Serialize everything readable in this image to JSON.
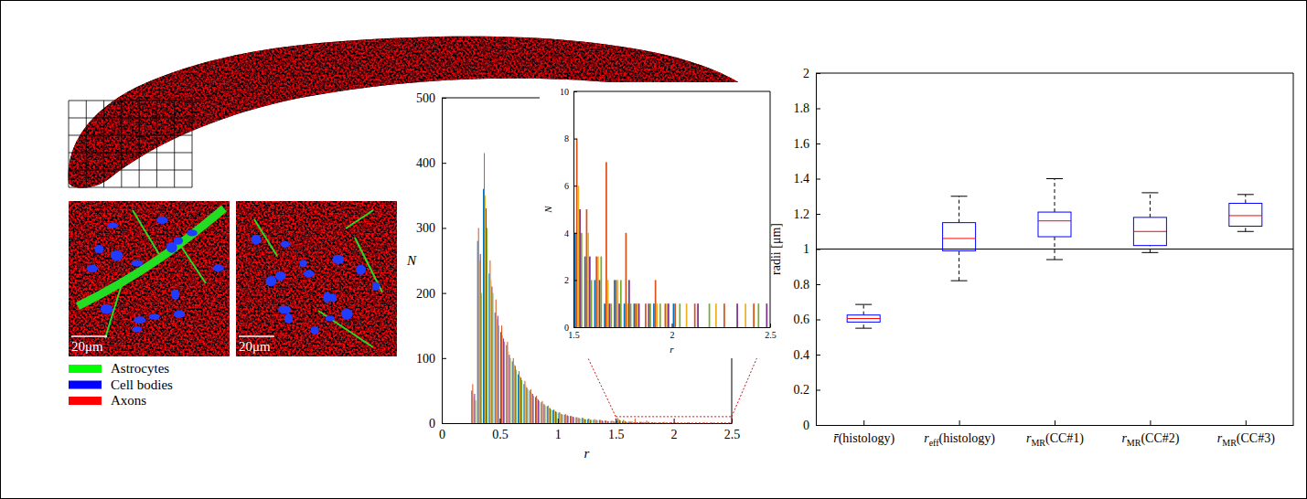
{
  "micrographs": {
    "scale_bars": [
      "20μm",
      "20μm"
    ],
    "legend": [
      {
        "name": "Astrocytes",
        "color": "#00ff00"
      },
      {
        "name": "Cell bodies",
        "color": "#0000ff"
      },
      {
        "name": "Axons",
        "color": "#ff0000"
      }
    ]
  },
  "chart_data": [
    {
      "type": "histogram",
      "xlabel": "r",
      "ylabel": "N",
      "bins": [
        0.25,
        0.3,
        0.35,
        0.4,
        0.45,
        0.5,
        0.55,
        0.6,
        0.65,
        0.7,
        0.75,
        0.8,
        0.85,
        0.9,
        0.95,
        1,
        1.05,
        1.1,
        1.15,
        1.2,
        1.25,
        1.3,
        1.35,
        1.4,
        1.45,
        1.5,
        1.55,
        1.6,
        1.65,
        1.7,
        1.75,
        1.8,
        1.85,
        1.9,
        1.95,
        2,
        2.05,
        2.1,
        2.15,
        2.2,
        2.25,
        2.3,
        2.35,
        2.4,
        2.45,
        2.5
      ],
      "series": [
        {
          "color": "#0072bd",
          "values": [
            50,
            280,
            360,
            230,
            170,
            140,
            120,
            95,
            75,
            60,
            50,
            40,
            32,
            26,
            20,
            16,
            13,
            11,
            9,
            8,
            6,
            5,
            5,
            4,
            3,
            4,
            3,
            2,
            1,
            2,
            1,
            1,
            0,
            1,
            0,
            1,
            0,
            0,
            0,
            0,
            0,
            0,
            0,
            0,
            0
          ]
        },
        {
          "color": "#d95319",
          "values": [
            60,
            300,
            415,
            250,
            190,
            150,
            125,
            100,
            80,
            65,
            52,
            42,
            34,
            27,
            21,
            17,
            14,
            11,
            9,
            8,
            7,
            6,
            5,
            4,
            4,
            8,
            5,
            3,
            7,
            2,
            4,
            1,
            1,
            2,
            1,
            1,
            0,
            1,
            0,
            0,
            1,
            0,
            0,
            1,
            0
          ]
        },
        {
          "color": "#edb120",
          "values": [
            40,
            250,
            350,
            220,
            160,
            135,
            110,
            90,
            72,
            58,
            46,
            38,
            30,
            24,
            19,
            15,
            12,
            10,
            8,
            7,
            6,
            5,
            4,
            3,
            3,
            6,
            4,
            3,
            2,
            2,
            1,
            1,
            0,
            1,
            1,
            0,
            1,
            0,
            0,
            1,
            0,
            0,
            1,
            0,
            0
          ]
        },
        {
          "color": "#7e2f8e",
          "values": [
            45,
            260,
            330,
            210,
            165,
            130,
            105,
            88,
            70,
            55,
            45,
            36,
            29,
            23,
            18,
            14,
            12,
            10,
            8,
            6,
            5,
            5,
            4,
            3,
            3,
            5,
            3,
            2,
            1,
            1,
            2,
            1,
            1,
            0,
            1,
            0,
            0,
            1,
            0,
            0,
            0,
            1,
            0,
            0,
            1
          ]
        },
        {
          "color": "#77ac30",
          "values": [
            35,
            200,
            300,
            200,
            150,
            125,
            100,
            82,
            66,
            52,
            42,
            34,
            27,
            21,
            17,
            13,
            11,
            9,
            7,
            6,
            5,
            4,
            3,
            3,
            2,
            4,
            2,
            3,
            1,
            2,
            1,
            0,
            1,
            1,
            0,
            1,
            0,
            0,
            1,
            0,
            0,
            0,
            0,
            1,
            0
          ]
        }
      ],
      "xlim": [
        0,
        2.5
      ],
      "ylim": [
        0,
        500
      ],
      "xticks": [
        0,
        0.5,
        1,
        1.5,
        2,
        2.5
      ],
      "yticks": [
        0,
        100,
        200,
        300,
        400,
        500
      ]
    },
    {
      "type": "histogram",
      "xlabel": "r",
      "ylabel": "N",
      "bins": [
        1.5,
        1.55,
        1.6,
        1.65,
        1.7,
        1.75,
        1.8,
        1.85,
        1.9,
        1.95,
        2,
        2.05,
        2.1,
        2.15,
        2.2,
        2.25,
        2.3,
        2.35,
        2.4,
        2.45,
        2.5
      ],
      "series": [
        {
          "color": "#0072bd",
          "values": [
            4,
            3,
            2,
            1,
            2,
            1,
            1,
            0,
            1,
            0,
            1,
            0,
            0,
            0,
            0,
            0,
            0,
            0,
            0,
            0
          ]
        },
        {
          "color": "#d95319",
          "values": [
            8,
            5,
            3,
            7,
            2,
            4,
            1,
            1,
            2,
            1,
            1,
            0,
            1,
            0,
            0,
            1,
            0,
            0,
            1,
            0
          ]
        },
        {
          "color": "#edb120",
          "values": [
            6,
            4,
            3,
            2,
            2,
            1,
            1,
            0,
            1,
            1,
            0,
            1,
            0,
            0,
            1,
            0,
            0,
            1,
            0,
            0
          ]
        },
        {
          "color": "#7e2f8e",
          "values": [
            5,
            3,
            2,
            1,
            1,
            2,
            1,
            1,
            0,
            1,
            0,
            0,
            1,
            0,
            0,
            0,
            1,
            0,
            0,
            1
          ]
        },
        {
          "color": "#77ac30",
          "values": [
            4,
            2,
            3,
            1,
            2,
            1,
            0,
            1,
            1,
            0,
            1,
            0,
            0,
            1,
            0,
            0,
            0,
            0,
            1,
            0
          ]
        }
      ],
      "xlim": [
        1.5,
        2.5
      ],
      "ylim": [
        0,
        10
      ],
      "xticks": [
        1.5,
        2,
        2.5
      ],
      "yticks": [
        0,
        2,
        4,
        6,
        8,
        10
      ]
    },
    {
      "type": "box",
      "ylabel": "radii [μm]",
      "categories": [
        "r̄(histology)",
        "reff(histology)",
        "rMR(CC#1)",
        "rMR(CC#2)",
        "rMR(CC#3)"
      ],
      "whisker_low": [
        0.55,
        0.82,
        0.94,
        0.98,
        1.1
      ],
      "q1": [
        0.585,
        0.99,
        1.07,
        1.02,
        1.13
      ],
      "median": [
        0.605,
        1.06,
        1.16,
        1.1,
        1.19
      ],
      "q3": [
        0.625,
        1.15,
        1.21,
        1.18,
        1.26
      ],
      "whisker_high": [
        0.685,
        1.3,
        1.4,
        1.32,
        1.31
      ],
      "reference_line": 1,
      "color": "#0000ff",
      "ylim": [
        0,
        2
      ],
      "yticks": [
        0,
        0.2,
        0.4,
        0.6,
        0.8,
        1,
        1.2,
        1.4,
        1.6,
        1.8,
        2
      ]
    }
  ]
}
